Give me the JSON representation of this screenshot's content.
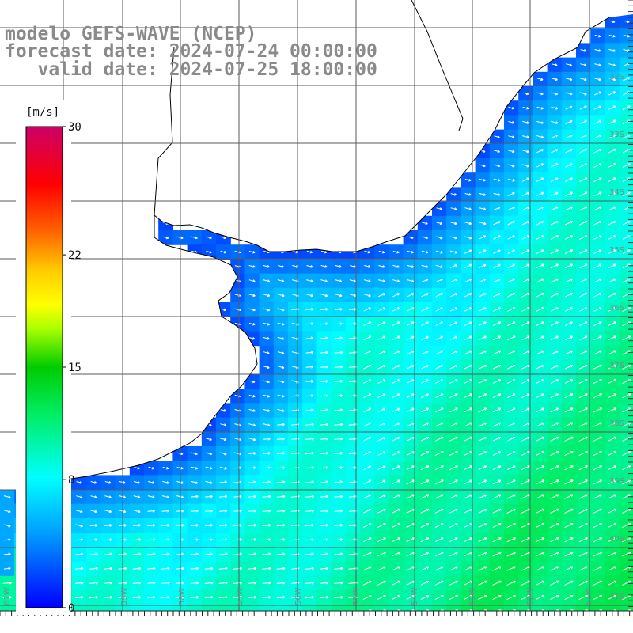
{
  "title": {
    "line1": "modelo GEFS-WAVE (NCEP)",
    "line2": "forecast date: 2024-07-24 00:00:00",
    "line3": "   valid date: 2024-07-25 18:00:00"
  },
  "colorbar": {
    "unit": "[m/s]",
    "ticks": [
      "30",
      "22",
      "15",
      "8",
      "0"
    ],
    "tick_values": [
      30,
      22,
      15,
      8,
      0
    ],
    "min": 0,
    "max": 30
  },
  "axes": {
    "lat_labels": [
      "32S",
      "33S",
      "34S",
      "35S",
      "36S",
      "37S",
      "38S",
      "39S",
      "40S",
      "41S"
    ],
    "lon_labels": [
      "61W",
      "60W",
      "59W",
      "58W",
      "57W",
      "56W",
      "55W",
      "54W",
      "53W",
      "52W",
      "51W"
    ]
  },
  "colors": {
    "land": "#ffffff",
    "grid": "#5a5a5a",
    "coast": "#000000",
    "arrow": "#ffffff",
    "title_text": "#8a8a8a"
  },
  "field": {
    "variable": "wind speed",
    "units": "m/s",
    "typical_offshore_range": [
      7,
      12
    ],
    "nearshore_min": 2
  }
}
